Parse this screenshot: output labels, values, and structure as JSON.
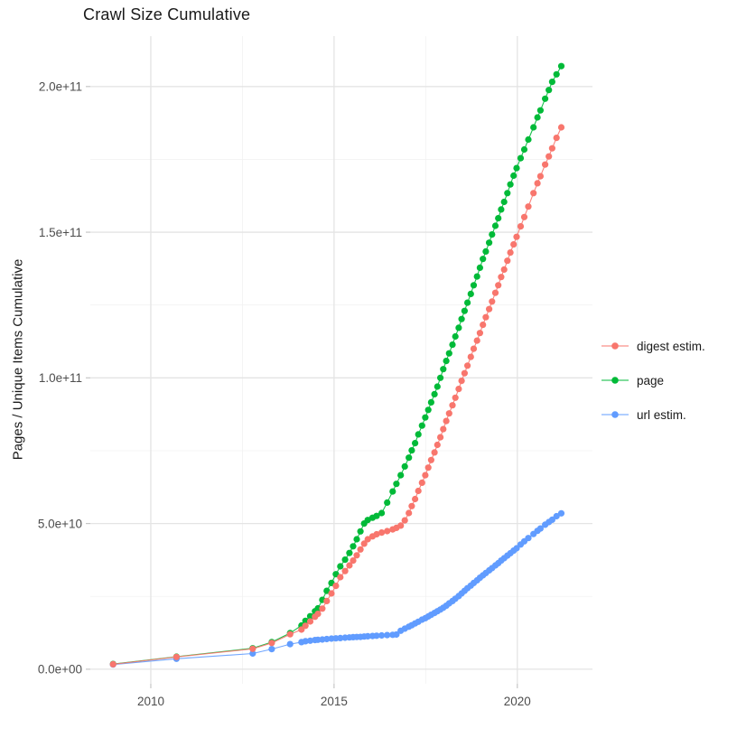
{
  "title": "Crawl Size Cumulative",
  "legend": {
    "position": "right",
    "items": [
      {
        "label": "digest estim.",
        "color": "#F8766D"
      },
      {
        "label": "page",
        "color": "#00BA38"
      },
      {
        "label": "url estim.",
        "color": "#619CFF"
      }
    ]
  },
  "chart_data": {
    "type": "scatter",
    "title": "Crawl Size Cumulative",
    "xlabel": "",
    "ylabel": "Pages / Unique Items Cumulative",
    "value_unit": "items, stored in billions (1e9)",
    "xlim": [
      2008.35,
      2022.05
    ],
    "ylim": [
      -5,
      217.3
    ],
    "grid": "on",
    "legend_position": "right",
    "x_axis": {
      "ticks": [
        {
          "label": "2010",
          "value": 2010
        },
        {
          "label": "2015",
          "value": 2015
        },
        {
          "label": "2020",
          "value": 2020
        }
      ],
      "minor_ticks": [
        2012.5,
        2017.5
      ]
    },
    "y_axis": {
      "ticks": [
        {
          "label": "0.0e+00",
          "value": 0
        },
        {
          "label": "5.0e+10",
          "value": 50
        },
        {
          "label": "1.0e+11",
          "value": 100
        },
        {
          "label": "1.5e+11",
          "value": 150
        },
        {
          "label": "2.0e+11",
          "value": 200
        }
      ],
      "minor_ticks": [
        25,
        75,
        125,
        175
      ]
    },
    "x": [
      2008.97,
      2010.7,
      2012.78,
      2013.3,
      2013.8,
      2014.11,
      2014.22,
      2014.35,
      2014.48,
      2014.56,
      2014.68,
      2014.8,
      2014.93,
      2015.05,
      2015.17,
      2015.3,
      2015.42,
      2015.52,
      2015.62,
      2015.72,
      2015.82,
      2015.92,
      2016.05,
      2016.16,
      2016.3,
      2016.45,
      2016.6,
      2016.7,
      2016.82,
      2016.93,
      2017.04,
      2017.12,
      2017.21,
      2017.3,
      2017.4,
      2017.49,
      2017.57,
      2017.65,
      2017.74,
      2017.82,
      2017.9,
      2017.98,
      2018.06,
      2018.14,
      2018.23,
      2018.31,
      2018.4,
      2018.48,
      2018.56,
      2018.64,
      2018.73,
      2018.81,
      2018.9,
      2018.98,
      2019.06,
      2019.14,
      2019.23,
      2019.31,
      2019.4,
      2019.48,
      2019.56,
      2019.64,
      2019.73,
      2019.81,
      2019.9,
      2019.98,
      2020.09,
      2020.19,
      2020.3,
      2020.44,
      2020.55,
      2020.63,
      2020.76,
      2020.86,
      2020.95,
      2021.07,
      2021.2
    ],
    "series": [
      {
        "name": "digest estim.",
        "color": "#F8766D",
        "values": [
          1.7,
          4.2,
          7.0,
          9.0,
          12.0,
          13.6,
          14.9,
          16.4,
          18.0,
          19.0,
          20.8,
          23.4,
          26.0,
          28.6,
          31.6,
          33.7,
          35.6,
          37.3,
          39.1,
          41.1,
          43.1,
          44.6,
          45.6,
          46.3,
          46.9,
          47.4,
          48.0,
          48.5,
          49.3,
          51.1,
          53.6,
          56.0,
          58.4,
          61.2,
          64.0,
          66.6,
          69.2,
          71.8,
          74.4,
          77.0,
          79.6,
          82.4,
          85.2,
          87.8,
          90.6,
          93.2,
          96.2,
          99.0,
          101.6,
          104.2,
          107.2,
          110.0,
          112.8,
          115.4,
          118.2,
          120.8,
          123.6,
          126.2,
          129.2,
          131.8,
          134.6,
          137.2,
          140.2,
          143.0,
          145.8,
          148.4,
          152.0,
          155.2,
          158.8,
          163.4,
          166.8,
          169.2,
          173.2,
          176.0,
          178.8,
          182.4,
          186.0
        ]
      },
      {
        "name": "page",
        "color": "#00BA38",
        "values": [
          1.8,
          4.3,
          7.2,
          9.3,
          12.4,
          15.0,
          16.6,
          18.2,
          19.9,
          20.9,
          23.8,
          26.9,
          29.6,
          32.6,
          35.3,
          37.6,
          39.9,
          42.2,
          44.6,
          47.3,
          50.0,
          51.2,
          52.0,
          52.6,
          53.6,
          57.2,
          61.0,
          63.6,
          66.6,
          69.6,
          72.6,
          75.1,
          77.6,
          80.6,
          83.6,
          86.4,
          89.0,
          91.6,
          94.4,
          97.0,
          100.0,
          103.0,
          105.8,
          108.4,
          111.4,
          114.2,
          117.2,
          120.2,
          123.0,
          125.8,
          128.8,
          131.8,
          134.8,
          137.8,
          140.8,
          143.4,
          146.4,
          149.2,
          152.2,
          154.8,
          157.8,
          160.4,
          163.4,
          166.4,
          169.4,
          172.0,
          175.4,
          178.4,
          181.8,
          186.0,
          189.4,
          191.8,
          195.8,
          198.8,
          201.6,
          204.2,
          207.0
        ]
      },
      {
        "name": "url estim.",
        "color": "#619CFF",
        "values": [
          1.6,
          3.6,
          5.4,
          6.9,
          8.6,
          9.3,
          9.6,
          9.8,
          10.0,
          10.1,
          10.2,
          10.35,
          10.5,
          10.6,
          10.7,
          10.8,
          10.9,
          11.0,
          11.05,
          11.1,
          11.2,
          11.3,
          11.4,
          11.5,
          11.6,
          11.7,
          11.8,
          11.9,
          13.2,
          13.9,
          14.6,
          15.1,
          15.7,
          16.3,
          17.0,
          17.5,
          18.1,
          18.7,
          19.3,
          19.9,
          20.5,
          21.1,
          21.8,
          22.6,
          23.4,
          24.2,
          25.1,
          26.0,
          26.9,
          27.8,
          28.7,
          29.6,
          30.5,
          31.4,
          32.2,
          33.0,
          33.9,
          34.7,
          35.6,
          36.4,
          37.3,
          38.1,
          39.0,
          39.8,
          40.7,
          41.5,
          42.8,
          43.9,
          45.0,
          46.4,
          47.5,
          48.3,
          49.6,
          50.5,
          51.3,
          52.5,
          53.5
        ]
      }
    ],
    "style": {
      "point_radius": 3.6,
      "line_width": 1.1,
      "major_grid_color": "#e4e4e4",
      "minor_grid_color": "#f2f2f2",
      "tick_mark_color": "#c6c6c6",
      "tick_label_color": "#4d4d4d",
      "text_color": "#1a1a1a",
      "background": "#ffffff"
    }
  }
}
